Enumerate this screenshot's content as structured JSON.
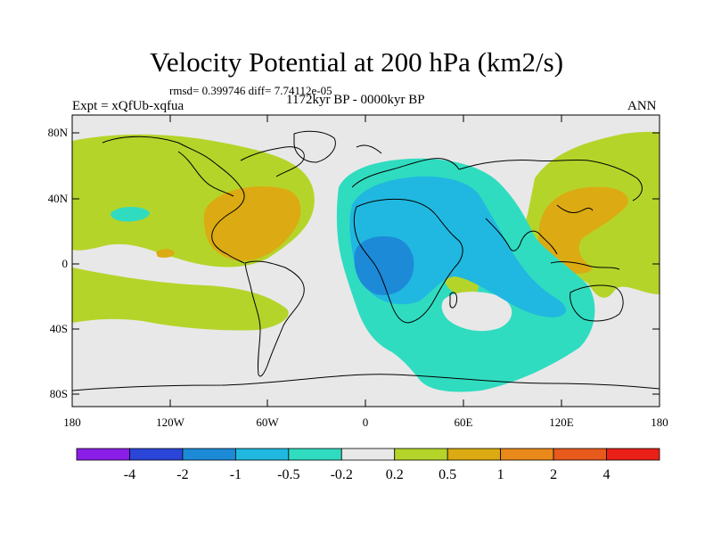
{
  "title": "Velocity Potential at 200 hPa (km2/s)",
  "stats": "rmsd= 0.399746 diff= 7.74112e-05",
  "expt": "Expt = xQfUb-xqfua",
  "period": "1172kyr BP - 0000kyr BP",
  "season": "ANN",
  "axes": {
    "lat_ticks": [
      "80N",
      "40N",
      "0",
      "40S",
      "80S"
    ],
    "lon_ticks": [
      "180",
      "120W",
      "60W",
      "0",
      "60E",
      "120E",
      "180"
    ]
  },
  "colorbar": {
    "labels": [
      "-4",
      "-2",
      "-1",
      "-0.5",
      "-0.2",
      "0.2",
      "0.5",
      "1",
      "2",
      "4"
    ],
    "colors": [
      "#8a1ee8",
      "#2a45d8",
      "#1d8ad8",
      "#20b8e0",
      "#30dcc0",
      "#e8e8e8",
      "#b5d42a",
      "#dcaa12",
      "#e8891a",
      "#e85a1c",
      "#e82018"
    ]
  },
  "colors": {
    "background": "#e8e8e8",
    "strong_negative": "#1d8ad8",
    "negative": "#20b8e0",
    "weak_negative": "#30dcc0",
    "weak_positive": "#b5d42a",
    "positive": "#dcaa12"
  }
}
